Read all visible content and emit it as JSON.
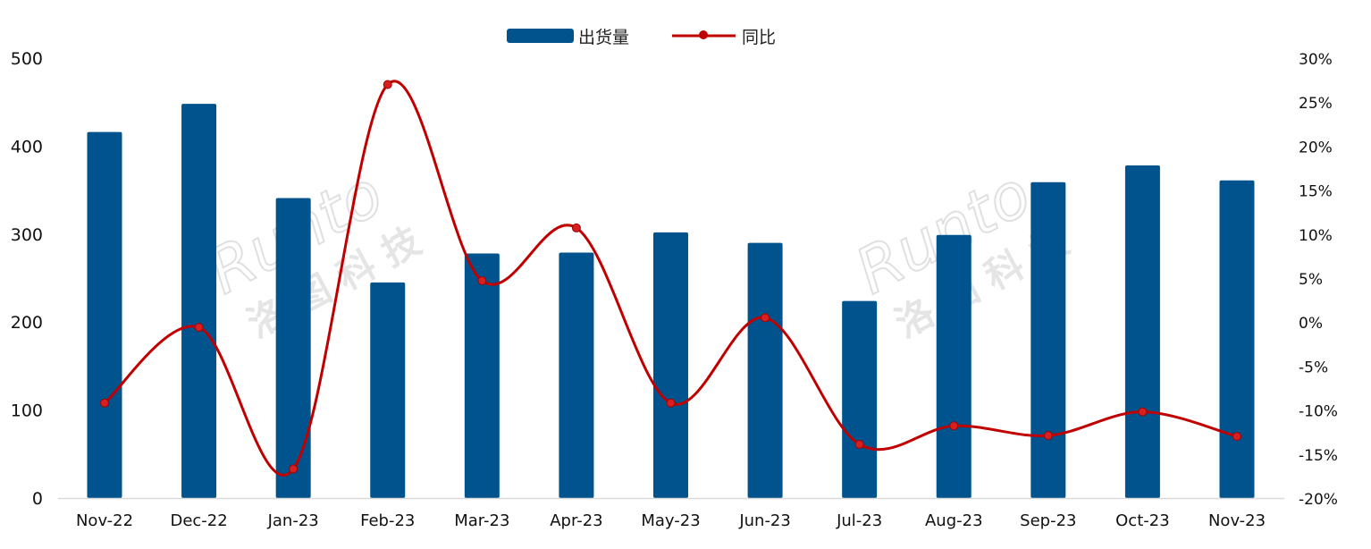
{
  "chart_data": {
    "type": "bar+line",
    "categories": [
      "Nov-22",
      "Dec-22",
      "Jan-23",
      "Feb-23",
      "Mar-23",
      "Apr-23",
      "May-23",
      "Jun-23",
      "Jul-23",
      "Aug-23",
      "Sep-23",
      "Oct-23",
      "Nov-23"
    ],
    "series": [
      {
        "name": "出货量",
        "type": "bar",
        "axis": "left",
        "color": "#00538C",
        "values": [
          416,
          448,
          341,
          245,
          278,
          279,
          302,
          290,
          224,
          299,
          359,
          378,
          361
        ]
      },
      {
        "name": "同比",
        "type": "line",
        "axis": "right",
        "color": "#C00000",
        "smooth": true,
        "values": [
          -9.2,
          -0.6,
          -16.7,
          27.0,
          4.7,
          10.7,
          -9.2,
          0.5,
          -13.9,
          -11.8,
          -12.9,
          -10.2,
          -13.0
        ]
      }
    ],
    "left_axis": {
      "ylim": [
        0,
        500
      ],
      "ticks": [
        "0",
        "100",
        "200",
        "300",
        "400",
        "500"
      ]
    },
    "right_axis": {
      "ylim": [
        -20,
        30
      ],
      "ticks": [
        "-20%",
        "-15%",
        "-10%",
        "-5%",
        "0%",
        "5%",
        "10%",
        "15%",
        "20%",
        "25%",
        "30%"
      ]
    },
    "legend": "top-center",
    "grid": false,
    "watermark": "Runto 洛图科技"
  }
}
